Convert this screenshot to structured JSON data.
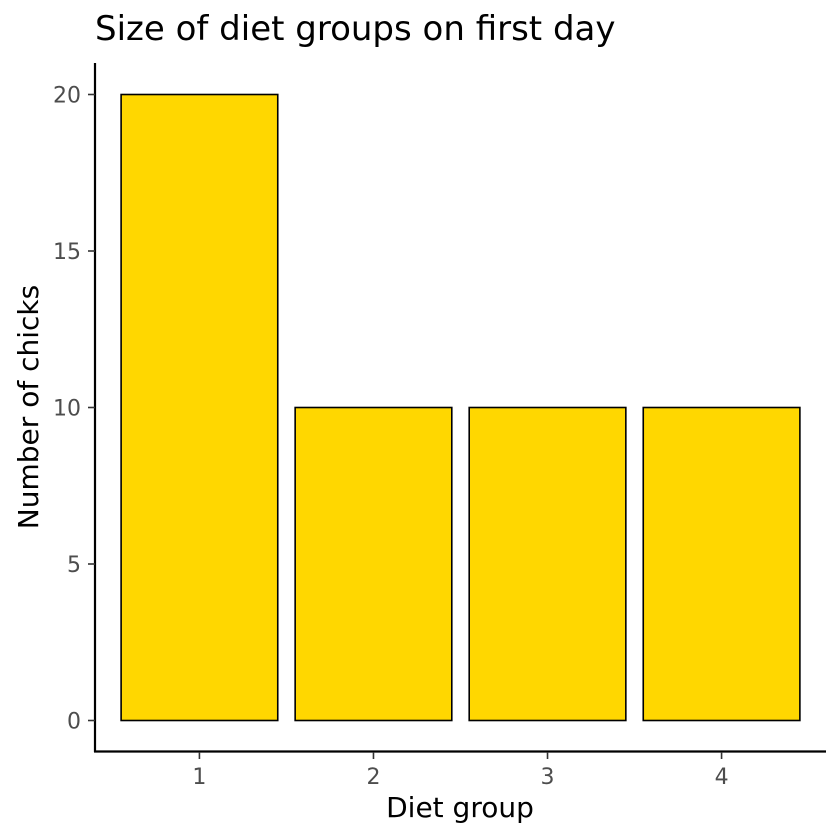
{
  "chart_data": {
    "type": "bar",
    "title": "Size of diet groups on first day",
    "xlabel": "Diet group",
    "ylabel": "Number of chicks",
    "categories": [
      "1",
      "2",
      "3",
      "4"
    ],
    "values": [
      20,
      10,
      10,
      10
    ],
    "ylim": [
      0,
      20
    ],
    "yticks": [
      "0",
      "5",
      "10",
      "15",
      "20"
    ],
    "grid": false,
    "legend": "none",
    "colors": {
      "bar_fill": "#FFD700",
      "bar_outline": "#000000"
    }
  }
}
